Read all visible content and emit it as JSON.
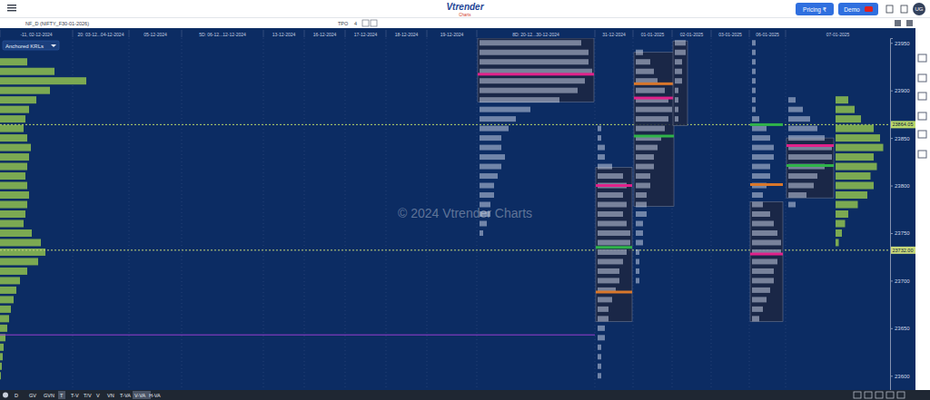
{
  "toolbar": {
    "logo": "Vtrender",
    "logo_sub": "Charts",
    "symbol": "NF_D (NIFTY_F30-01-2026)",
    "tpo_label": "TPO",
    "tpo_value": "4",
    "pricing": "Pricing ₹",
    "demo": "Demo",
    "user": "UG"
  },
  "anchored_label": "Anchored KRLs",
  "watermark": "© 2024 Vtrender Charts",
  "bottom_bar": [
    "D",
    "GV",
    "GVN",
    "T",
    "T-V",
    "T/V",
    "V",
    "VN",
    "T-VA",
    "V-VA",
    "H-VA"
  ],
  "chart_data": {
    "type": "market_profile",
    "categories": [
      "-11, 02-12-2024",
      "20: 03-12...04-12-2024",
      "05-12-2024",
      "5D: 06-12...12-12-2024",
      "13-12-2024",
      "16-12-2024",
      "17-12-2024",
      "18-12-2024",
      "19-12-2024",
      "8D: 20-12...30-12-2024",
      "31-12-2024",
      "01-01-2025",
      "02-01-2025",
      "03-01-2025",
      "06-01-2025",
      "07-01-2025"
    ],
    "ylim": [
      23585,
      23955
    ],
    "yticks": [
      23600,
      23650,
      23700,
      23750,
      23800,
      23850,
      23900,
      23950
    ],
    "grid": false,
    "anchored_volume": {
      "color": "#8fbf4f",
      "prices": [
        23930,
        23920,
        23910,
        23900,
        23890,
        23880,
        23870,
        23860,
        23850,
        23840,
        23830,
        23820,
        23810,
        23800,
        23790,
        23780,
        23770,
        23760,
        23750,
        23740,
        23730,
        23720,
        23710,
        23700,
        23690,
        23680,
        23670,
        23660,
        23650,
        23640,
        23630,
        23620,
        23610,
        23600
      ],
      "values": [
        30,
        60,
        95,
        55,
        40,
        32,
        28,
        26,
        30,
        34,
        32,
        30,
        28,
        30,
        32,
        30,
        28,
        26,
        35,
        45,
        50,
        42,
        30,
        22,
        18,
        15,
        12,
        10,
        8,
        6,
        4,
        3,
        2,
        1
      ]
    },
    "profiles": [
      {
        "column": 9,
        "rows": {
          "prices": [
            23950,
            23940,
            23930,
            23920,
            23910,
            23900,
            23890,
            23880,
            23870,
            23860,
            23850,
            23840,
            23830,
            23820,
            23810,
            23800,
            23790,
            23780,
            23770,
            23760,
            23750
          ],
          "values": [
            28,
            30,
            30,
            31,
            29,
            27,
            22,
            14,
            10,
            8,
            6,
            6,
            7,
            6,
            5,
            4,
            4,
            3,
            3,
            2,
            1
          ]
        },
        "value_area": [
          23888,
          23955
        ],
        "poc": 23917,
        "lines": []
      },
      {
        "column": 10,
        "rows": {
          "prices": [
            23860,
            23850,
            23840,
            23830,
            23820,
            23810,
            23800,
            23790,
            23780,
            23770,
            23760,
            23750,
            23740,
            23730,
            23720,
            23710,
            23700,
            23690,
            23680,
            23670,
            23660,
            23650,
            23640,
            23630,
            23620,
            23610,
            23600
          ],
          "values": [
            1,
            1,
            2,
            2,
            4,
            7,
            8,
            7,
            8,
            7,
            8,
            9,
            9,
            8,
            7,
            6,
            6,
            5,
            4,
            3,
            3,
            2,
            2,
            1,
            1,
            1,
            1
          ]
        },
        "value_area": [
          23657,
          23819
        ],
        "poc": 23800,
        "lines": [
          {
            "value": 23688,
            "color": "#d9772b"
          },
          {
            "value": 23735,
            "color": "#2fb34a"
          }
        ]
      },
      {
        "column": 11,
        "rows": {
          "prices": [
            23940,
            23930,
            23920,
            23910,
            23900,
            23890,
            23880,
            23870,
            23860,
            23850,
            23840,
            23830,
            23820,
            23810,
            23800,
            23790,
            23780,
            23770,
            23760,
            23750,
            23740,
            23730,
            23720,
            23710,
            23700
          ],
          "values": [
            2,
            4,
            5,
            6,
            8,
            9,
            10,
            9,
            8,
            7,
            6,
            5,
            5,
            4,
            4,
            3,
            3,
            3,
            2,
            2,
            2,
            1,
            1,
            1,
            1
          ]
        },
        "value_area": [
          23778,
          23940
        ],
        "poc": 23892,
        "lines": [
          {
            "value": 23907,
            "color": "#d9772b"
          },
          {
            "value": 23852,
            "color": "#2fb34a"
          }
        ]
      },
      {
        "column": 12,
        "rows": {
          "prices": [
            23950,
            23940,
            23930,
            23920,
            23910,
            23900,
            23890,
            23880,
            23870
          ],
          "values": [
            3,
            3,
            2,
            2,
            2,
            1,
            1,
            1,
            1
          ]
        },
        "value_area": [
          23863,
          23952
        ],
        "lines": []
      },
      {
        "column": 14,
        "rows": {
          "prices": [
            23950,
            23940,
            23930,
            23920,
            23910,
            23900,
            23890,
            23880,
            23870,
            23860,
            23850,
            23840,
            23830,
            23820,
            23810,
            23800,
            23790,
            23780,
            23770,
            23760,
            23750,
            23740,
            23730,
            23720,
            23710,
            23700,
            23690,
            23680,
            23670,
            23660
          ],
          "values": [
            1,
            1,
            1,
            1,
            1,
            1,
            1,
            1,
            2,
            4,
            5,
            6,
            6,
            5,
            5,
            4,
            3,
            3,
            5,
            6,
            7,
            8,
            8,
            7,
            6,
            6,
            5,
            4,
            3,
            2
          ]
        },
        "value_area": [
          23657,
          23783
        ],
        "poc": 23728,
        "lines": [
          {
            "value": 23801,
            "color": "#d9772b"
          },
          {
            "value": 23864,
            "color": "#2fb34a"
          }
        ]
      },
      {
        "column": 15,
        "rows": {
          "prices": [
            23890,
            23880,
            23870,
            23860,
            23850,
            23840,
            23830,
            23820,
            23810,
            23800,
            23790,
            23780
          ],
          "values": [
            2,
            4,
            6,
            8,
            10,
            12,
            12,
            10,
            8,
            7,
            5,
            2
          ]
        },
        "value_area": [
          23787,
          23850
        ],
        "poc": 23842,
        "lines": [
          {
            "value": 23821,
            "color": "#2fb34a"
          }
        ],
        "volume": {
          "color": "#8fbf4f",
          "prices": [
            23890,
            23880,
            23870,
            23860,
            23850,
            23840,
            23830,
            23820,
            23810,
            23800,
            23790,
            23780,
            23770,
            23760,
            23750,
            23740
          ],
          "values": [
            4,
            6,
            8,
            12,
            14,
            15,
            12,
            13,
            11,
            12,
            10,
            7,
            4,
            3,
            2,
            1
          ]
        }
      }
    ],
    "reference_lines": [
      {
        "value": 23864.05,
        "label": "23864.05",
        "color": "#bcd96a",
        "line_style": "dotted",
        "columns": [
          0,
          15
        ]
      },
      {
        "value": 23732,
        "label": "23732.00",
        "color": "#c9d97a",
        "line_style": "dotted",
        "columns": [
          0,
          15
        ]
      },
      {
        "value": 23643,
        "color": "#9b3fd1",
        "line_style": "solid",
        "columns": [
          0,
          9
        ]
      }
    ]
  }
}
